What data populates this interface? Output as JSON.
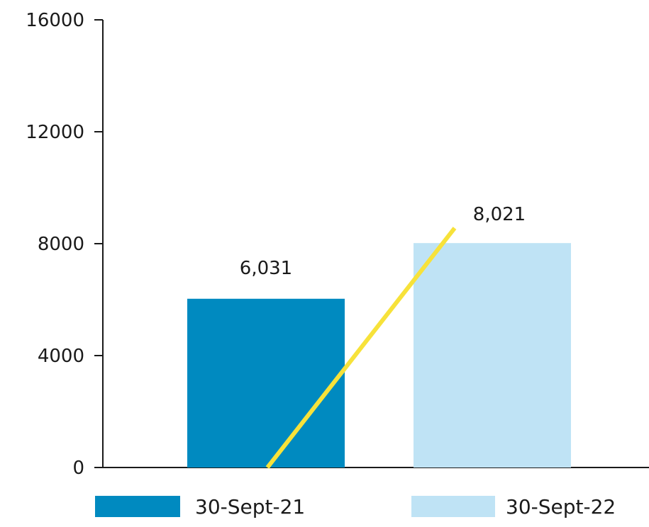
{
  "chart_data": {
    "type": "bar",
    "categories": [
      "30-Sept-21",
      "30-Sept-22"
    ],
    "values": [
      6031,
      8021
    ],
    "value_labels": [
      "6,031",
      "8,021"
    ],
    "colors": [
      "#008ac0",
      "#bfe3f5"
    ],
    "trend_color": "#f7e23a",
    "ylim": [
      0,
      16000
    ],
    "yticks": [
      "0",
      "4000",
      "8000",
      "12000",
      "16000"
    ],
    "title": "",
    "xlabel": "",
    "ylabel": "",
    "legend": {
      "placement": "bottom",
      "entries": [
        {
          "label": "30-Sept-21",
          "color": "#008ac0"
        },
        {
          "label": "30-Sept-22",
          "color": "#bfe3f5"
        }
      ]
    },
    "grid": false
  }
}
